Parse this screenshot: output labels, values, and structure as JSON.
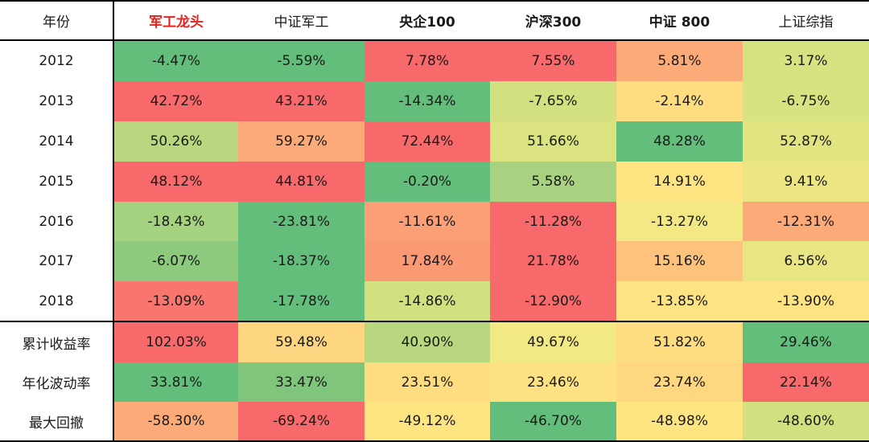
{
  "header": {
    "year_label": "年份",
    "columns": [
      "军工龙头",
      "中证军工",
      "央企100",
      "沪深300",
      "中证 800",
      "上证综指"
    ]
  },
  "rows": [
    {
      "label": "2012",
      "values": [
        "-4.47%",
        "-5.59%",
        "7.78%",
        "7.55%",
        "5.81%",
        "3.17%"
      ],
      "colors": [
        "#63be7b",
        "#63be7b",
        "#f8696b",
        "#f8696b",
        "#fcaa78",
        "#d7e281"
      ]
    },
    {
      "label": "2013",
      "values": [
        "42.72%",
        "43.21%",
        "-14.34%",
        "-7.65%",
        "-2.14%",
        "-6.75%"
      ],
      "colors": [
        "#f8696b",
        "#f8696b",
        "#63be7b",
        "#d2e080",
        "#fedd81",
        "#d9e280"
      ]
    },
    {
      "label": "2014",
      "values": [
        "50.26%",
        "59.27%",
        "72.44%",
        "51.66%",
        "48.28%",
        "52.87%"
      ],
      "colors": [
        "#b8d77f",
        "#fcaa78",
        "#f8696b",
        "#dbe381",
        "#63be7b",
        "#e2e482"
      ]
    },
    {
      "label": "2015",
      "values": [
        "48.12%",
        "44.81%",
        "-0.20%",
        "5.58%",
        "14.91%",
        "9.41%"
      ],
      "colors": [
        "#f8696b",
        "#f8696b",
        "#63be7b",
        "#a8d27f",
        "#fee582",
        "#ebe683"
      ]
    },
    {
      "label": "2016",
      "values": [
        "-18.43%",
        "-23.81%",
        "-11.61%",
        "-11.28%",
        "-13.27%",
        "-12.31%"
      ],
      "colors": [
        "#a5d27f",
        "#63be7b",
        "#fba076",
        "#f8696b",
        "#f3e884",
        "#fcab78"
      ]
    },
    {
      "label": "2017",
      "values": [
        "-6.07%",
        "-18.37%",
        "17.84%",
        "21.78%",
        "15.16%",
        "6.56%"
      ],
      "colors": [
        "#8dca7d",
        "#63be7b",
        "#fa9a75",
        "#f8696b",
        "#fdc27c",
        "#e8e583"
      ]
    },
    {
      "label": "2018",
      "values": [
        "-13.09%",
        "-17.78%",
        "-14.86%",
        "-12.90%",
        "-13.85%",
        "-13.90%"
      ],
      "colors": [
        "#f8766d",
        "#63be7b",
        "#d2e080",
        "#f8696b",
        "#fee382",
        "#fee382"
      ]
    },
    {
      "label": "累计收益率",
      "values": [
        "102.03%",
        "59.48%",
        "40.90%",
        "49.67%",
        "51.82%",
        "29.46%"
      ],
      "colors": [
        "#f8696b",
        "#fed580",
        "#b8d77f",
        "#f2e884",
        "#fedd81",
        "#63be7b"
      ]
    },
    {
      "label": "年化波动率",
      "values": [
        "33.81%",
        "33.47%",
        "23.51%",
        "23.46%",
        "23.74%",
        "22.14%"
      ],
      "colors": [
        "#63be7b",
        "#7fc57c",
        "#fedd81",
        "#fee182",
        "#fed780",
        "#f8696b"
      ]
    },
    {
      "label": "最大回撤",
      "values": [
        "-58.30%",
        "-69.24%",
        "-49.12%",
        "-46.70%",
        "-48.98%",
        "-48.60%"
      ],
      "colors": [
        "#fcaa78",
        "#f8696b",
        "#fee582",
        "#63be7b",
        "#fee582",
        "#d2e080"
      ]
    }
  ]
}
